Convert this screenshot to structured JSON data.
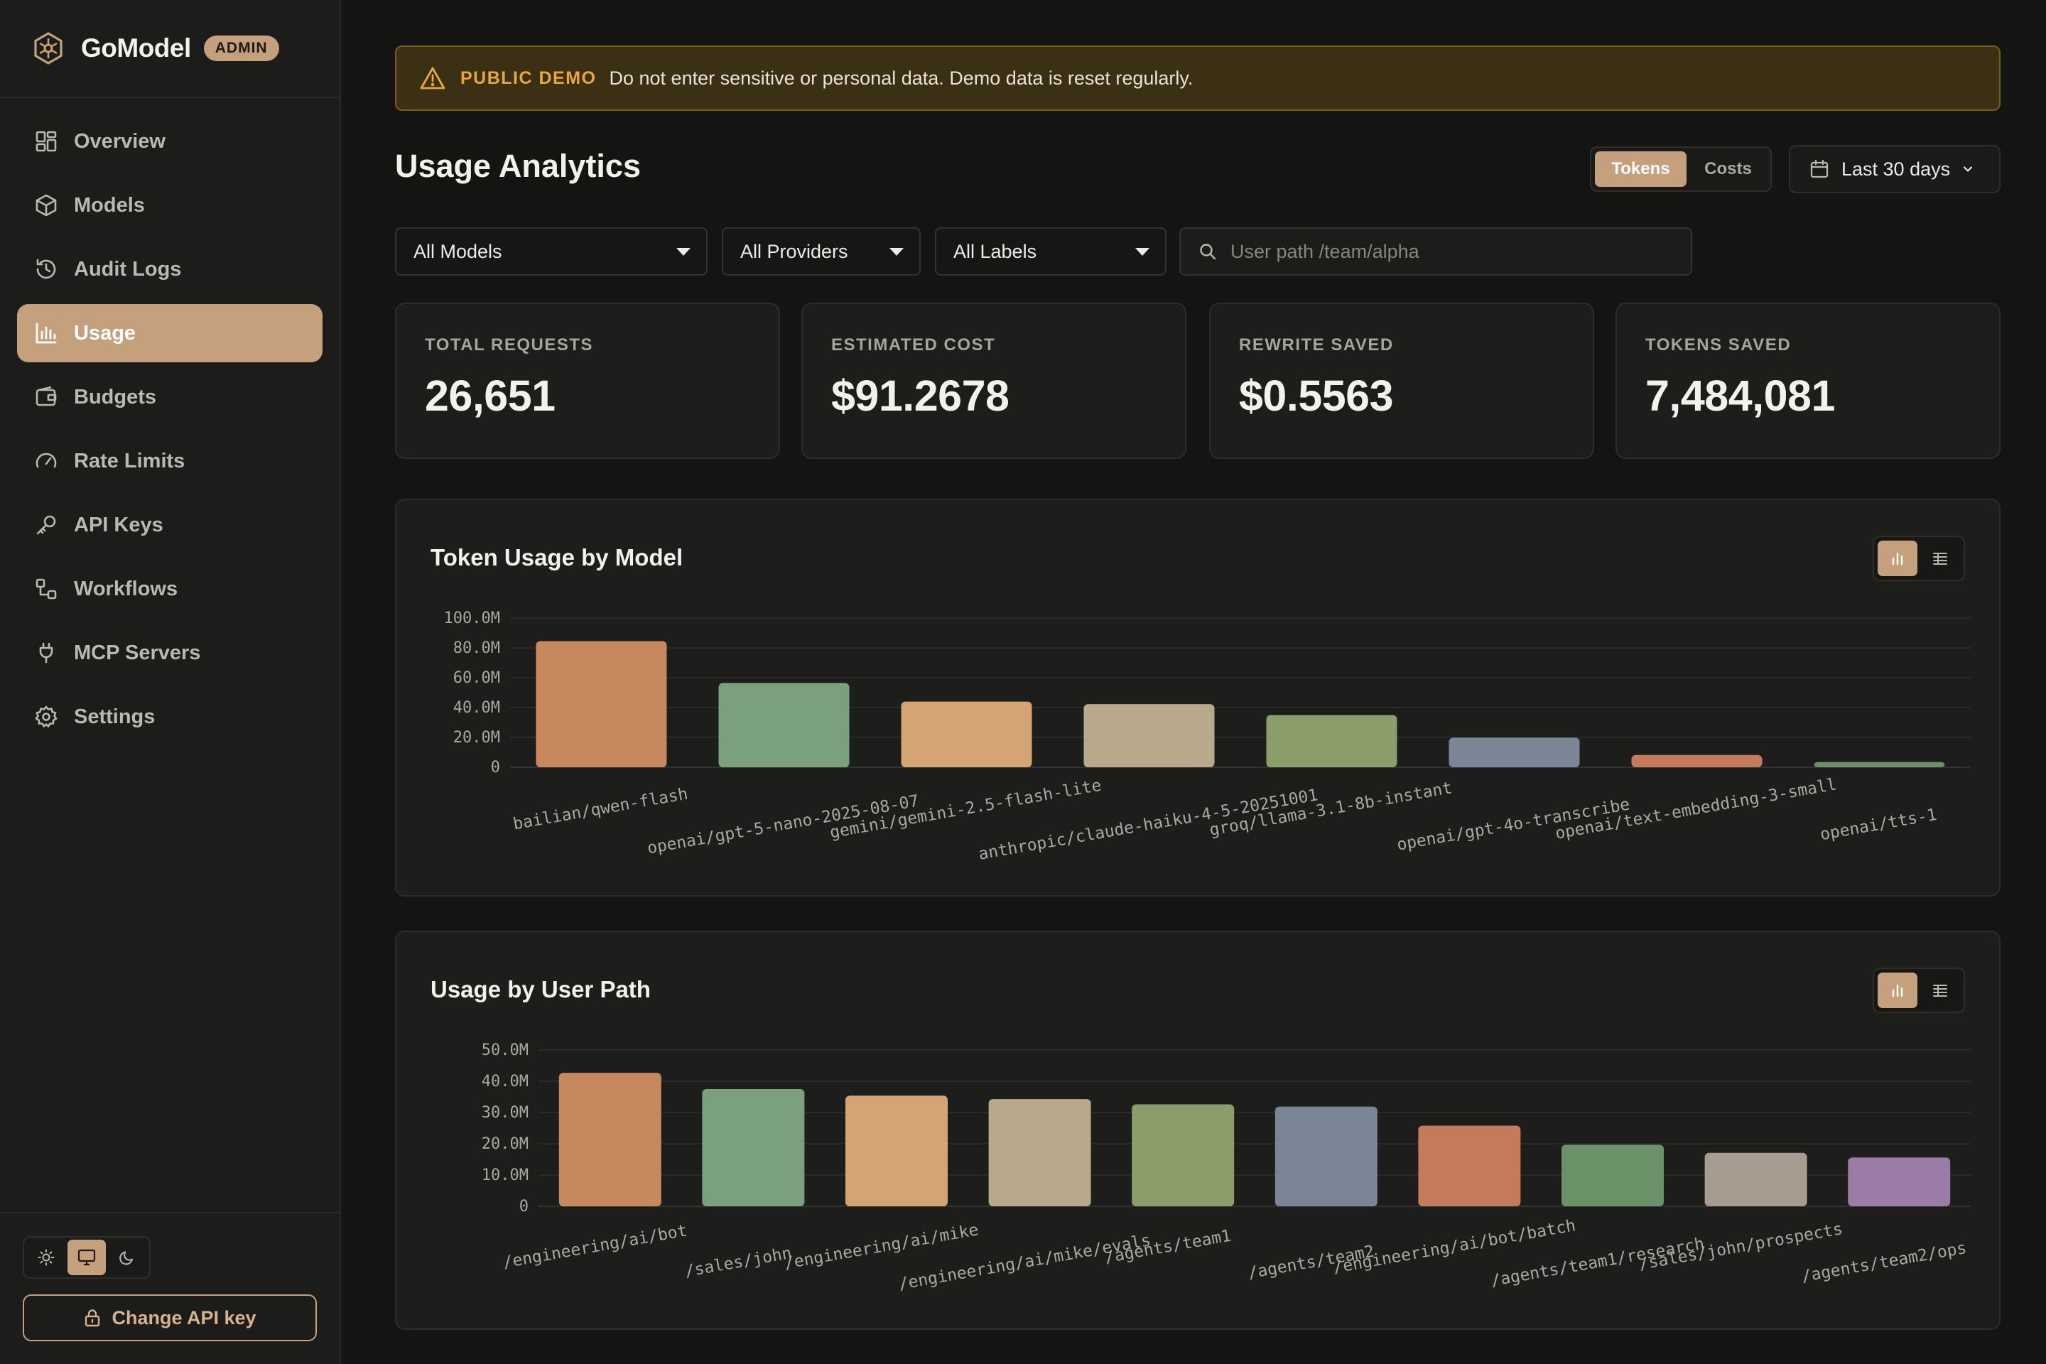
{
  "app": {
    "name": "GoModel",
    "badge": "ADMIN"
  },
  "sidebar": {
    "items": [
      {
        "label": "Overview",
        "icon": "grid-icon",
        "active": false
      },
      {
        "label": "Models",
        "icon": "cube-icon",
        "active": false
      },
      {
        "label": "Audit Logs",
        "icon": "history-icon",
        "active": false
      },
      {
        "label": "Usage",
        "icon": "bar-chart-icon",
        "active": true
      },
      {
        "label": "Budgets",
        "icon": "wallet-icon",
        "active": false
      },
      {
        "label": "Rate Limits",
        "icon": "gauge-icon",
        "active": false
      },
      {
        "label": "API Keys",
        "icon": "key-icon",
        "active": false
      },
      {
        "label": "Workflows",
        "icon": "workflow-icon",
        "active": false
      },
      {
        "label": "MCP Servers",
        "icon": "plug-icon",
        "active": false
      },
      {
        "label": "Settings",
        "icon": "gear-icon",
        "active": false
      }
    ],
    "theme_selected": "system",
    "change_key_label": "Change API key"
  },
  "banner": {
    "tag": "PUBLIC DEMO",
    "message": "Do not enter sensitive or personal data. Demo data is reset regularly."
  },
  "page": {
    "title": "Usage Analytics",
    "metric_toggle": {
      "tokens": "Tokens",
      "costs": "Costs",
      "selected": "Tokens"
    },
    "date_range": "Last 30 days"
  },
  "filters": {
    "models": "All Models",
    "providers": "All Providers",
    "labels": "All Labels",
    "search_placeholder": "User path /team/alpha",
    "search_value": ""
  },
  "stats": [
    {
      "label": "TOTAL REQUESTS",
      "value": "26,651"
    },
    {
      "label": "ESTIMATED COST",
      "value": "$91.2678"
    },
    {
      "label": "REWRITE SAVED",
      "value": "$0.5563"
    },
    {
      "label": "TOKENS SAVED",
      "value": "7,484,081"
    }
  ],
  "colors": {
    "accent": "#c4a07c",
    "palette": [
      "#c8885e",
      "#7aa07e",
      "#d5a474",
      "#b8a88c",
      "#8b9d68",
      "#7a8696",
      "#c67a5c",
      "#6b9168",
      "#a79c8f",
      "#9c7ba6"
    ]
  },
  "chart_data": [
    {
      "type": "bar",
      "title": "Token Usage by Model",
      "categories": [
        "bailian/qwen-flash",
        "openai/gpt-5-nano-2025-08-07",
        "gemini/gemini-2.5-flash-lite",
        "anthropic/claude-haiku-4-5-20251001",
        "groq/llama-3.1-8b-instant",
        "openai/gpt-4o-transcribe",
        "openai/text-embedding-3-small",
        "openai/tts-1"
      ],
      "values": [
        84.5,
        56.5,
        44.0,
        42.3,
        35.0,
        19.8,
        8.2,
        3.5
      ],
      "ylim": [
        0,
        100
      ],
      "yticks": [
        "0",
        "20.0M",
        "40.0M",
        "60.0M",
        "80.0M",
        "100.0M"
      ],
      "unit": "M tokens",
      "grid": true,
      "view": "chart"
    },
    {
      "type": "bar",
      "title": "Usage by User Path",
      "categories": [
        "/engineering/ai/bot",
        "/sales/john",
        "/engineering/ai/mike",
        "/engineering/ai/mike/evals",
        "/agents/team1",
        "/agents/team2",
        "/engineering/ai/bot/batch",
        "/agents/team1/research",
        "/sales/john/prospects",
        "/agents/team2/ops"
      ],
      "values": [
        42.7,
        37.5,
        35.4,
        34.3,
        32.6,
        31.9,
        25.8,
        19.7,
        17.1,
        15.6
      ],
      "ylim": [
        0,
        50
      ],
      "yticks": [
        "0",
        "10.0M",
        "20.0M",
        "30.0M",
        "40.0M",
        "50.0M"
      ],
      "unit": "M tokens",
      "grid": true,
      "view": "chart"
    }
  ]
}
